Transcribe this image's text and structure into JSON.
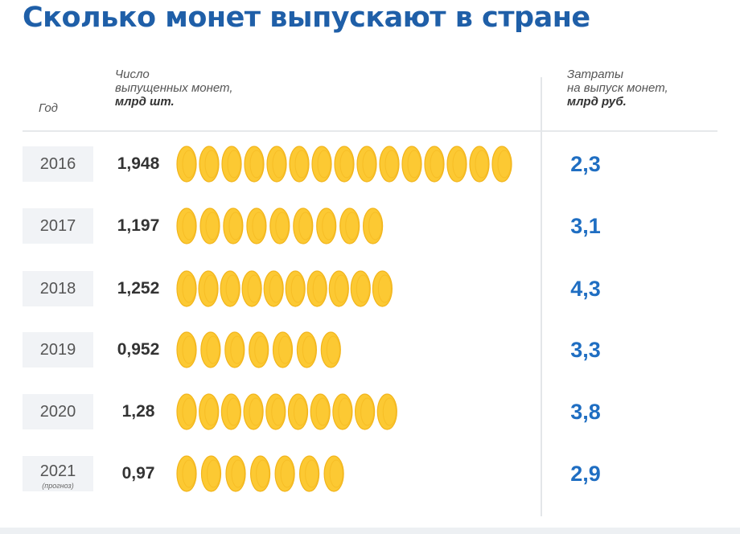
{
  "title": "Сколько монет выпускают в стране",
  "headers": {
    "year": "Год",
    "count_line1": "Число",
    "count_line2": "выпущенных монет,",
    "count_unit": "млрд шт.",
    "cost_line1": "Затраты",
    "cost_line2": "на выпуск монет,",
    "cost_unit": "млрд руб."
  },
  "colors": {
    "coin_fill": "#fcc933",
    "coin_edge": "#f2b51c",
    "title": "#1f5fa8",
    "cost_text": "#1f6ec2"
  },
  "chart_data": {
    "type": "bar",
    "categories": [
      "2016",
      "2017",
      "2018",
      "2019",
      "2020",
      "2021"
    ],
    "category_notes": [
      "",
      "",
      "",
      "",
      "",
      "(прогноз)"
    ],
    "series": [
      {
        "values": [
          1.948,
          1.197,
          1.252,
          0.952,
          1.28,
          0.97
        ],
        "labels": [
          "1,948",
          "1,197",
          "1,252",
          "0,952",
          "1,28",
          "0,97"
        ]
      },
      {
        "values": [
          2.3,
          3.1,
          4.3,
          3.3,
          3.8,
          2.9
        ],
        "labels": [
          "2,3",
          "3,1",
          "4,3",
          "3,3",
          "3,8",
          "2,9"
        ]
      }
    ],
    "xlim": [
      0,
      1.948
    ]
  }
}
